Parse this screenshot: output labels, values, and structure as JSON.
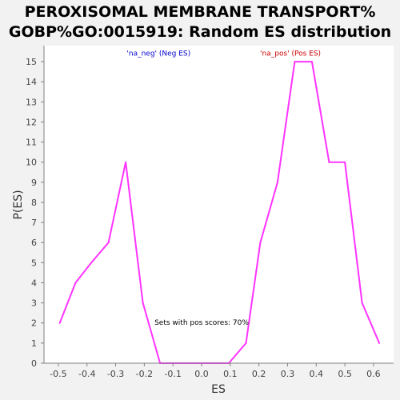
{
  "title_lines": [
    "PEROXISOMAL MEMBRANE TRANSPORT%",
    "GOBP%GO:0015919: Random ES distribution"
  ],
  "chart_data": {
    "type": "line",
    "xlabel": "ES",
    "ylabel": "P(ES)",
    "xlim": [
      -0.55,
      0.67
    ],
    "ylim": [
      0,
      15.8
    ],
    "x_ticks": [
      -0.5,
      -0.4,
      -0.3,
      -0.2,
      -0.1,
      0.0,
      0.1,
      0.2,
      0.3,
      0.4,
      0.5,
      0.6
    ],
    "x_tick_labels": [
      "-0.5",
      "-0.4",
      "-0.3",
      "-0.2",
      "-0.1",
      "0.0",
      "0.1",
      "0.2",
      "0.3",
      "0.4",
      "0.5",
      "0.6"
    ],
    "y_ticks": [
      0,
      1,
      2,
      3,
      4,
      5,
      6,
      7,
      8,
      9,
      10,
      11,
      12,
      13,
      14,
      15
    ],
    "y_tick_labels": [
      "0",
      "1",
      "2",
      "3",
      "4",
      "5",
      "6",
      "7",
      "8",
      "9",
      "10",
      "11",
      "12",
      "13",
      "14",
      "15"
    ],
    "grid": false,
    "series": [
      {
        "color": "#ff33ff",
        "x": [
          -0.495,
          -0.44,
          -0.385,
          -0.325,
          -0.265,
          -0.205,
          -0.145,
          0.095,
          0.155,
          0.205,
          0.265,
          0.325,
          0.385,
          0.445,
          0.5,
          0.56,
          0.62
        ],
        "y": [
          2,
          4,
          5,
          6,
          10,
          3,
          0,
          0,
          1,
          6,
          9,
          15,
          15,
          10,
          10,
          3,
          1
        ]
      }
    ],
    "annotations": [
      {
        "text": "'na_neg' (Neg ES)",
        "color": "#0000cc",
        "x": -0.15,
        "y": 15.3
      },
      {
        "text": "'na_pos' (Pos ES)",
        "color": "#cc0000",
        "x": 0.31,
        "y": 15.3
      },
      {
        "text": "Sets with pos scores: 70%",
        "color": "#000000",
        "x": 0.0,
        "y": 1.92
      }
    ]
  }
}
